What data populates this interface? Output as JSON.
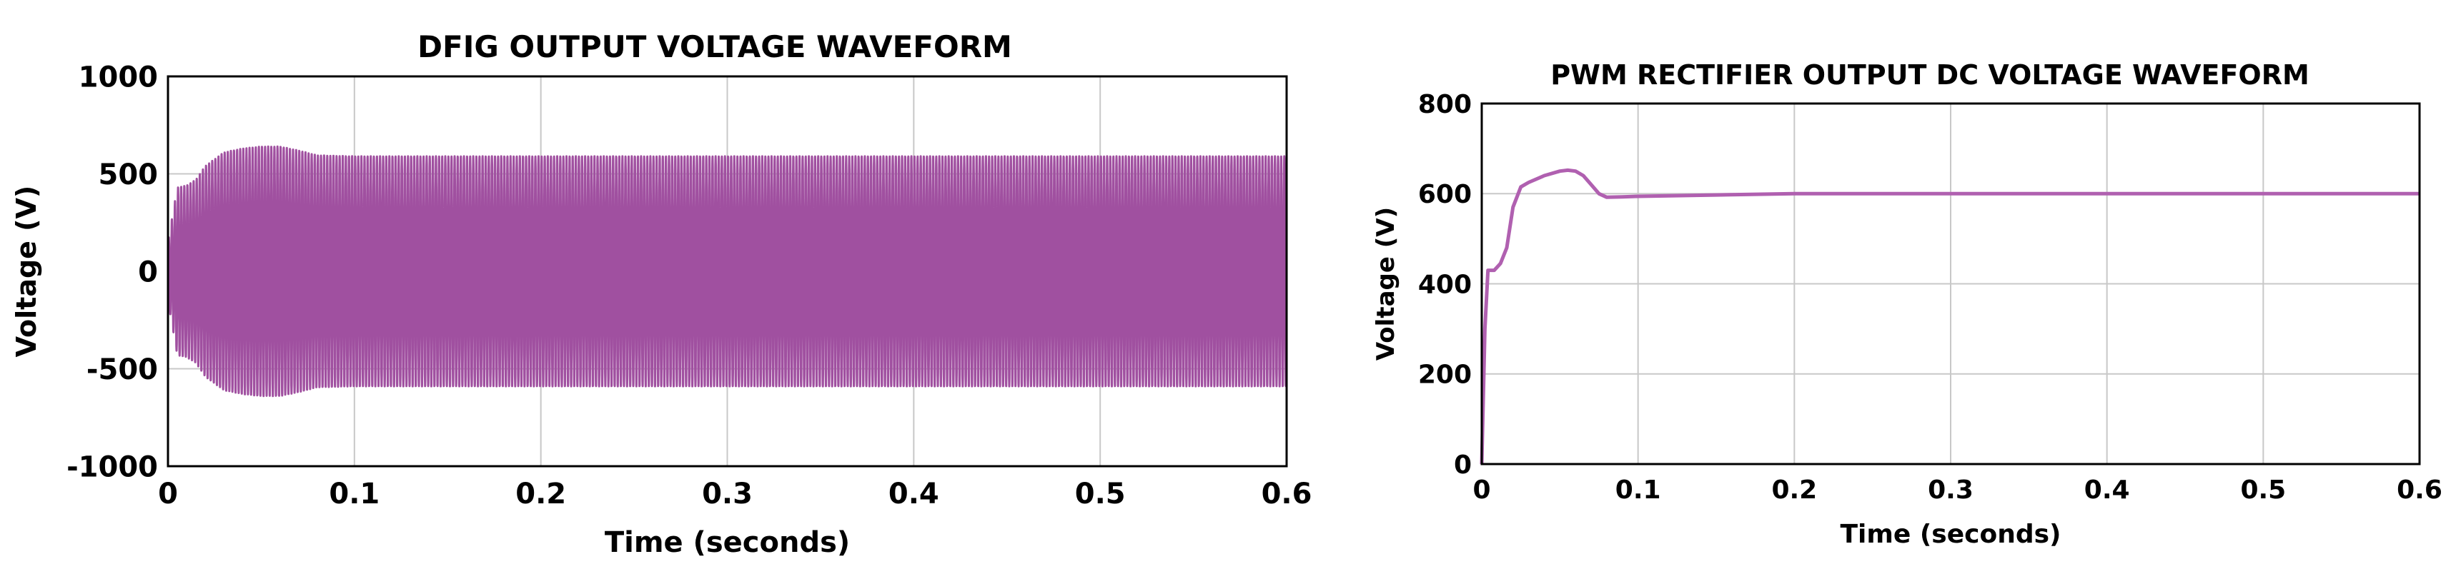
{
  "chart_data": [
    {
      "type": "line",
      "title": "DFIG OUTPUT VOLTAGE WAVEFORM",
      "xlabel": "Time (seconds)",
      "ylabel": "Voltage (V)",
      "xlim": [
        0,
        0.6
      ],
      "ylim": [
        -1000,
        1000
      ],
      "xticks": [
        0,
        0.1,
        0.2,
        0.3,
        0.4,
        0.5,
        0.6
      ],
      "xtick_labels": [
        "0",
        "0.1",
        "0.2",
        "0.3",
        "0.4",
        "0.5",
        "0.6"
      ],
      "yticks": [
        -1000,
        -500,
        0,
        500,
        1000
      ],
      "ytick_labels": [
        "-1000",
        "-500",
        "0",
        "500",
        "1000"
      ],
      "grid": true,
      "color": "#a050a0",
      "series": [
        {
          "frequency_hz": 50,
          "envelope": {
            "t": [
              0,
              0.005,
              0.01,
              0.015,
              0.02,
              0.03,
              0.04,
              0.05,
              0.06,
              0.07,
              0.08,
              0.1,
              0.15,
              0.2,
              0.6
            ],
            "amplitude": [
              150,
              430,
              440,
              470,
              540,
              610,
              630,
              640,
              640,
              620,
              595,
              590,
              590,
              590,
              590
            ]
          }
        }
      ]
    },
    {
      "type": "line",
      "title": "PWM RECTIFIER OUTPUT DC VOLTAGE WAVEFORM",
      "xlabel": "Time (seconds)",
      "ylabel": "Voltage (V)",
      "xlim": [
        0,
        0.6
      ],
      "ylim": [
        0,
        800
      ],
      "xticks": [
        0,
        0.1,
        0.2,
        0.3,
        0.4,
        0.5,
        0.6
      ],
      "xtick_labels": [
        "0",
        "0.1",
        "0.2",
        "0.3",
        "0.4",
        "0.5",
        "0.6"
      ],
      "yticks": [
        0,
        200,
        400,
        600,
        800
      ],
      "ytick_labels": [
        "0",
        "200",
        "400",
        "600",
        "800"
      ],
      "grid": true,
      "color": "#b060b0",
      "series": [
        {
          "x": [
            0,
            0.002,
            0.004,
            0.008,
            0.012,
            0.016,
            0.02,
            0.025,
            0.03,
            0.04,
            0.05,
            0.055,
            0.06,
            0.065,
            0.07,
            0.075,
            0.08,
            0.09,
            0.1,
            0.15,
            0.2,
            0.3,
            0.4,
            0.5,
            0.6
          ],
          "y": [
            0,
            300,
            430,
            430,
            445,
            480,
            570,
            615,
            625,
            640,
            650,
            652,
            650,
            640,
            620,
            600,
            592,
            593,
            594,
            597,
            600,
            600,
            600,
            600,
            600
          ]
        }
      ]
    }
  ]
}
